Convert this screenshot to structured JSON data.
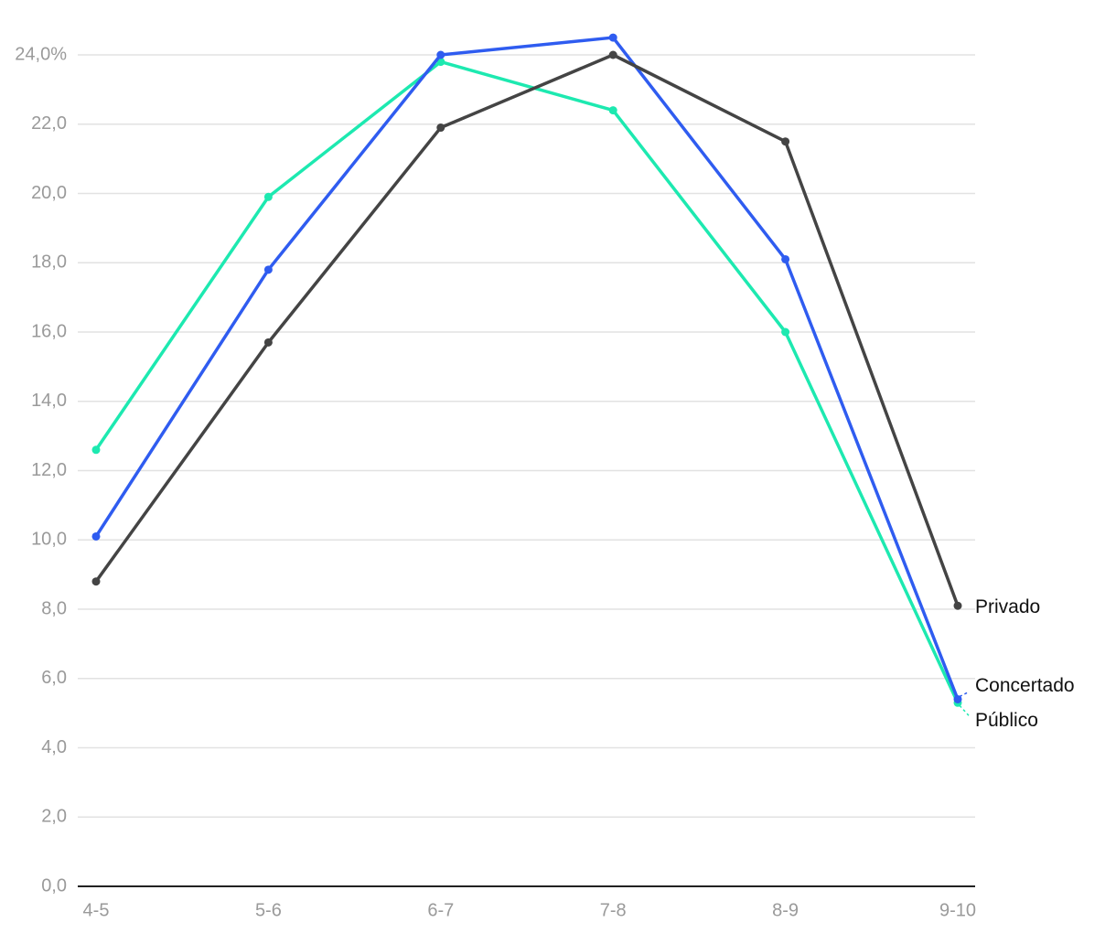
{
  "chart_data": {
    "type": "line",
    "categories": [
      "4-5",
      "5-6",
      "6-7",
      "7-8",
      "8-9",
      "9-10"
    ],
    "series": [
      {
        "name": "Público",
        "color": "#1de9b0",
        "values": [
          12.6,
          19.9,
          23.8,
          22.4,
          16.0,
          5.3
        ]
      },
      {
        "name": "Concertado",
        "color": "#2f5cf0",
        "values": [
          10.1,
          17.8,
          24.0,
          24.5,
          18.1,
          5.4
        ]
      },
      {
        "name": "Privado",
        "color": "#444444",
        "values": [
          8.8,
          15.7,
          21.9,
          24.0,
          21.5,
          8.1
        ]
      }
    ],
    "ylim": [
      0,
      24
    ],
    "yticks": [
      {
        "value": 0,
        "label": "0,0"
      },
      {
        "value": 2,
        "label": "2,0"
      },
      {
        "value": 4,
        "label": "4,0"
      },
      {
        "value": 6,
        "label": "6,0"
      },
      {
        "value": 8,
        "label": "8,0"
      },
      {
        "value": 10,
        "label": "10,0"
      },
      {
        "value": 12,
        "label": "12,0"
      },
      {
        "value": 14,
        "label": "14,0"
      },
      {
        "value": 16,
        "label": "16,0"
      },
      {
        "value": 18,
        "label": "18,0"
      },
      {
        "value": 20,
        "label": "20,0"
      },
      {
        "value": 22,
        "label": "22,0"
      },
      {
        "value": 24,
        "label": "24,0%"
      }
    ],
    "grid": true
  }
}
